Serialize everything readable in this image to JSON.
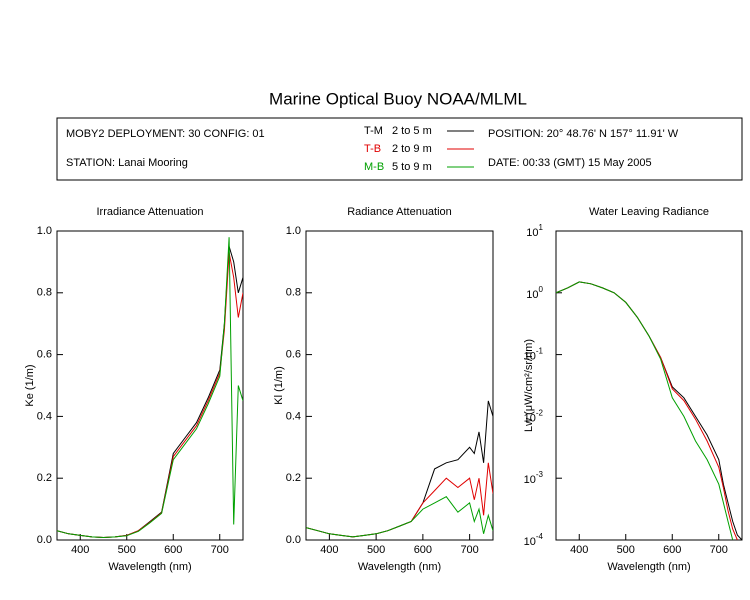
{
  "header": {
    "title": "Marine Optical Buoy NOAA/MLML",
    "info": [
      "MOBY2 DEPLOYMENT: 30 CONFIG: 01",
      "STATION: Lanai Mooring"
    ],
    "legend": [
      {
        "code": "T-M",
        "range": "2 to 5  m",
        "color": "#000000"
      },
      {
        "code": "T-B",
        "range": "2 to 9  m",
        "color": "#e00000"
      },
      {
        "code": "M-B",
        "range": "5 to 9  m",
        "color": "#00a000"
      }
    ],
    "position": "POSITION: 20° 48.76' N   157° 11.91' W",
    "date": "DATE: 00:33 (GMT) 15 May 2005"
  },
  "chart_data": [
    {
      "type": "line",
      "title": "Irradiance Attenuation",
      "x_label": "Wavelength (nm)",
      "y_label": "Ke  (1/m)",
      "x": [
        350,
        375,
        400,
        425,
        450,
        475,
        500,
        525,
        550,
        575,
        600,
        625,
        650,
        675,
        700,
        710,
        720,
        730,
        740,
        750
      ],
      "xlim": [
        350,
        750
      ],
      "xticks": [
        400,
        500,
        600,
        700
      ],
      "ylim": [
        0,
        1
      ],
      "yticks": [
        {
          "value": 0,
          "label": "0.0"
        },
        0.2,
        0.4,
        0.6,
        0.8,
        {
          "value": 1,
          "label": "1.0"
        }
      ],
      "series": [
        {
          "color": "#000000",
          "values": [
            0.03,
            0.02,
            0.015,
            0.01,
            0.008,
            0.01,
            0.015,
            0.03,
            0.06,
            0.09,
            0.28,
            0.33,
            0.38,
            0.46,
            0.55,
            0.7,
            0.95,
            0.9,
            0.8,
            0.85
          ]
        },
        {
          "color": "#e00000",
          "values": [
            0.03,
            0.02,
            0.015,
            0.01,
            0.008,
            0.01,
            0.015,
            0.03,
            0.058,
            0.088,
            0.27,
            0.32,
            0.37,
            0.45,
            0.54,
            0.68,
            0.93,
            0.85,
            0.72,
            0.8
          ]
        },
        {
          "color": "#00a000",
          "values": [
            0.03,
            0.02,
            0.015,
            0.01,
            0.008,
            0.01,
            0.014,
            0.028,
            0.056,
            0.086,
            0.26,
            0.31,
            0.36,
            0.44,
            0.53,
            0.7,
            0.98,
            0.05,
            0.5,
            0.45
          ]
        }
      ]
    },
    {
      "type": "line",
      "title": "Radiance Attenuation",
      "x_label": "Wavelength (nm)",
      "y_label": "Kl  (1/m)",
      "x": [
        350,
        375,
        400,
        425,
        450,
        475,
        500,
        525,
        550,
        575,
        600,
        625,
        650,
        675,
        700,
        710,
        720,
        730,
        740,
        750
      ],
      "xlim": [
        350,
        750
      ],
      "xticks": [
        400,
        500,
        600,
        700
      ],
      "ylim": [
        0,
        1
      ],
      "yticks": [
        {
          "value": 0,
          "label": "0.0"
        },
        0.2,
        0.4,
        0.6,
        0.8,
        {
          "value": 1,
          "label": "1.0"
        }
      ],
      "series": [
        {
          "color": "#000000",
          "values": [
            0.04,
            0.03,
            0.02,
            0.015,
            0.01,
            0.015,
            0.02,
            0.03,
            0.045,
            0.06,
            0.12,
            0.23,
            0.25,
            0.26,
            0.3,
            0.28,
            0.35,
            0.25,
            0.45,
            0.4
          ]
        },
        {
          "color": "#e00000",
          "values": [
            0.04,
            0.03,
            0.02,
            0.015,
            0.01,
            0.015,
            0.02,
            0.03,
            0.045,
            0.06,
            0.12,
            0.16,
            0.2,
            0.17,
            0.2,
            0.13,
            0.2,
            0.08,
            0.25,
            0.15
          ]
        },
        {
          "color": "#00a000",
          "values": [
            0.04,
            0.03,
            0.02,
            0.015,
            0.01,
            0.015,
            0.02,
            0.03,
            0.045,
            0.06,
            0.1,
            0.12,
            0.14,
            0.09,
            0.12,
            0.06,
            0.1,
            0.02,
            0.08,
            0.03
          ]
        }
      ]
    },
    {
      "type": "line",
      "title": "Water Leaving Radiance",
      "x_label": "Wavelength (nm)",
      "y_label": "Lw  (μW/cm²/sr/nm)",
      "x": [
        350,
        375,
        400,
        425,
        450,
        475,
        500,
        525,
        550,
        575,
        600,
        625,
        650,
        675,
        700,
        710,
        720,
        730,
        740,
        750
      ],
      "xlim": [
        350,
        750
      ],
      "xticks": [
        400,
        500,
        600,
        700
      ],
      "log_y": true,
      "ylim": [
        0.0001,
        10
      ],
      "yticks": [
        {
          "value": 0.0001,
          "label": "10",
          "exponent": "-4"
        },
        {
          "value": 0.001,
          "label": "10",
          "exponent": "-3"
        },
        {
          "value": 0.01,
          "label": "10",
          "exponent": "-2"
        },
        {
          "value": 0.1,
          "label": "10",
          "exponent": "-1"
        },
        {
          "value": 1,
          "label": "10",
          "exponent": "0"
        },
        {
          "value": 10,
          "label": "10",
          "exponent": "1"
        }
      ],
      "series": [
        {
          "color": "#000000",
          "values": [
            1.0,
            1.2,
            1.5,
            1.4,
            1.2,
            1.0,
            0.7,
            0.4,
            0.2,
            0.09,
            0.03,
            0.02,
            0.01,
            0.005,
            0.002,
            0.0008,
            0.0004,
            0.0002,
            0.00012,
            0.0001
          ]
        },
        {
          "color": "#e00000",
          "values": [
            1.0,
            1.2,
            1.5,
            1.4,
            1.2,
            1.0,
            0.7,
            0.4,
            0.2,
            0.09,
            0.028,
            0.018,
            0.009,
            0.004,
            0.0015,
            0.0007,
            0.0003,
            0.00015,
            0.0001,
            null
          ]
        },
        {
          "color": "#00a000",
          "values": [
            1.0,
            1.2,
            1.5,
            1.4,
            1.2,
            1.0,
            0.7,
            0.4,
            0.2,
            0.085,
            0.02,
            0.01,
            0.004,
            0.002,
            0.0008,
            0.0004,
            0.0002,
            0.0001,
            null,
            null
          ]
        }
      ]
    }
  ]
}
